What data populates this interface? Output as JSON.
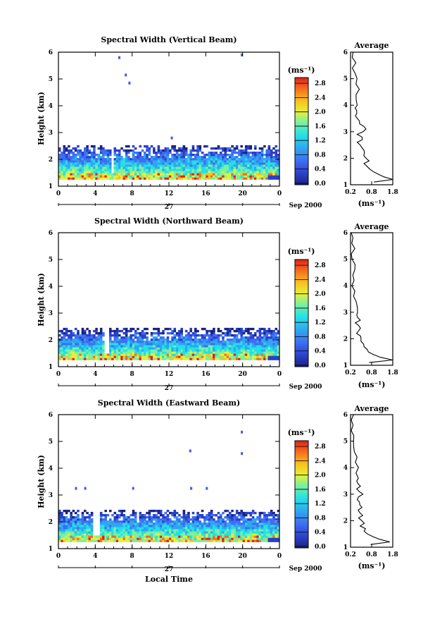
{
  "chart_data": [
    {
      "type": "heatmap",
      "title": "Spectral Width (Vertical Beam)",
      "ylabel": "Height (km)",
      "xticks": [
        "0",
        "4",
        "8",
        "12",
        "16",
        "20",
        "0"
      ],
      "yticks": [
        "1",
        "2",
        "3",
        "4",
        "5",
        "6"
      ],
      "xlim": [
        0,
        24
      ],
      "ylim": [
        1,
        6
      ],
      "date_axis": {
        "day": "27",
        "label": "Sep 2000"
      },
      "colorbar": {
        "unit": "(ms⁻¹)",
        "range": [
          0,
          3.0
        ],
        "ticks": [
          "0.0",
          "0.4",
          "0.8",
          "1.2",
          "1.6",
          "2.0",
          "2.4",
          "2.8"
        ]
      },
      "layer_top_km": 2.5,
      "gaps": [
        [
          5.6,
          6.0
        ]
      ],
      "isolated_points": [
        [
          6.5,
          5.85
        ],
        [
          7.2,
          5.2
        ],
        [
          7.6,
          4.9
        ],
        [
          12.2,
          2.85
        ],
        [
          19.8,
          5.95
        ]
      ],
      "profile": {
        "title": "Average",
        "xlabel": "(ms⁻¹)",
        "xticks": [
          "0.2",
          "0.8",
          "1.8"
        ],
        "xlim": [
          0.2,
          1.8
        ],
        "heights": [
          1.1,
          1.2,
          1.3,
          1.4,
          1.5,
          1.6,
          1.7,
          1.8,
          1.9,
          2.0,
          2.1,
          2.2,
          2.3,
          2.4,
          2.5,
          2.6,
          2.7,
          2.8,
          2.9,
          3.0,
          3.1,
          3.2,
          3.3,
          3.4,
          3.5,
          3.6,
          3.7,
          3.8,
          3.9,
          4.0,
          4.2,
          4.4,
          4.6,
          4.8,
          5.0,
          5.2,
          5.4,
          5.6,
          5.8,
          6.0
        ],
        "values": [
          1.1,
          1.8,
          1.5,
          1.3,
          1.0,
          0.9,
          0.8,
          0.7,
          0.9,
          0.8,
          0.7,
          0.8,
          0.7,
          0.6,
          0.6,
          0.5,
          0.6,
          0.6,
          0.5,
          0.6,
          0.8,
          0.7,
          0.5,
          0.6,
          0.5,
          0.4,
          0.5,
          0.5,
          0.4,
          0.5,
          0.4,
          0.4,
          0.5,
          0.4,
          0.4,
          0.4,
          0.3,
          0.4,
          0.3,
          0.3
        ]
      }
    },
    {
      "type": "heatmap",
      "title": "Spectral Width (Northward Beam)",
      "ylabel": "Height (km)",
      "xticks": [
        "0",
        "4",
        "8",
        "12",
        "16",
        "20",
        "0"
      ],
      "yticks": [
        "1",
        "2",
        "3",
        "4",
        "5",
        "6"
      ],
      "xlim": [
        0,
        24
      ],
      "ylim": [
        1,
        6
      ],
      "date_axis": {
        "day": "27",
        "label": "Sep 2000"
      },
      "colorbar": {
        "unit": "(ms⁻¹)",
        "range": [
          0,
          3.0
        ],
        "ticks": [
          "0.0",
          "0.4",
          "0.8",
          "1.2",
          "1.6",
          "2.0",
          "2.4",
          "2.8"
        ]
      },
      "layer_top_km": 2.4,
      "gaps": [
        [
          4.8,
          5.4
        ]
      ],
      "isolated_points": [],
      "profile": {
        "title": "Average",
        "xlabel": "(ms⁻¹)",
        "xticks": [
          "0.2",
          "0.8",
          "1.8"
        ],
        "xlim": [
          0.2,
          1.8
        ],
        "heights": [
          1.1,
          1.2,
          1.3,
          1.4,
          1.5,
          1.6,
          1.7,
          1.8,
          1.9,
          2.0,
          2.1,
          2.2,
          2.3,
          2.4,
          2.5,
          2.6,
          2.7,
          2.8,
          2.9,
          3.0,
          3.2,
          3.4,
          3.6,
          3.8,
          4.0,
          4.2,
          4.4,
          4.6,
          4.8,
          5.0,
          5.2,
          5.4,
          5.6,
          5.8,
          6.0
        ],
        "values": [
          0.9,
          1.8,
          1.4,
          1.1,
          0.9,
          0.8,
          0.7,
          0.7,
          0.6,
          0.6,
          0.6,
          0.5,
          0.5,
          0.6,
          0.5,
          0.4,
          0.5,
          0.4,
          0.4,
          0.5,
          0.4,
          0.4,
          0.3,
          0.4,
          0.3,
          0.4,
          0.3,
          0.4,
          0.3,
          0.3,
          0.2,
          0.3,
          0.2,
          0.3,
          0.2
        ]
      }
    },
    {
      "type": "heatmap",
      "title": "Spectral Width (Eastward Beam)",
      "ylabel": "Height (km)",
      "xlabel": "Local Time",
      "xticks": [
        "0",
        "4",
        "8",
        "12",
        "16",
        "20",
        "0"
      ],
      "yticks": [
        "1",
        "2",
        "3",
        "4",
        "5",
        "6"
      ],
      "xlim": [
        0,
        24
      ],
      "ylim": [
        1,
        6
      ],
      "date_axis": {
        "day": "27",
        "label": "Sep 2000"
      },
      "colorbar": {
        "unit": "(ms⁻¹)",
        "range": [
          0,
          3.0
        ],
        "ticks": [
          "0.0",
          "0.4",
          "0.8",
          "1.2",
          "1.6",
          "2.0",
          "2.4",
          "2.8"
        ]
      },
      "layer_top_km": 2.4,
      "gaps": [
        [
          3.6,
          4.4
        ]
      ],
      "isolated_points": [
        [
          1.8,
          3.3
        ],
        [
          2.8,
          3.3
        ],
        [
          8.0,
          3.3
        ],
        [
          14.2,
          4.7
        ],
        [
          14.3,
          3.3
        ],
        [
          16.0,
          3.3
        ],
        [
          19.8,
          5.4
        ],
        [
          19.8,
          4.6
        ]
      ],
      "profile": {
        "title": "Average",
        "xlabel": "(ms⁻¹)",
        "xticks": [
          "0.2",
          "0.8",
          "1.8"
        ],
        "xlim": [
          0.2,
          1.8
        ],
        "heights": [
          1.1,
          1.2,
          1.3,
          1.4,
          1.5,
          1.6,
          1.7,
          1.8,
          1.9,
          2.0,
          2.1,
          2.2,
          2.3,
          2.4,
          2.5,
          2.6,
          2.7,
          2.8,
          2.9,
          3.0,
          3.1,
          3.2,
          3.3,
          3.4,
          3.5,
          3.6,
          3.8,
          4.0,
          4.2,
          4.4,
          4.6,
          4.8,
          5.0,
          5.2,
          5.4,
          5.6,
          5.8,
          6.0
        ],
        "values": [
          0.9,
          1.7,
          1.3,
          1.0,
          0.8,
          0.7,
          0.7,
          0.6,
          0.7,
          0.6,
          0.5,
          0.6,
          0.5,
          0.5,
          0.6,
          0.5,
          0.6,
          0.5,
          0.5,
          0.7,
          0.6,
          0.5,
          0.6,
          0.5,
          0.4,
          0.5,
          0.4,
          0.5,
          0.4,
          0.4,
          0.4,
          0.3,
          0.3,
          0.3,
          0.3,
          0.3,
          0.2,
          0.3
        ]
      }
    }
  ]
}
